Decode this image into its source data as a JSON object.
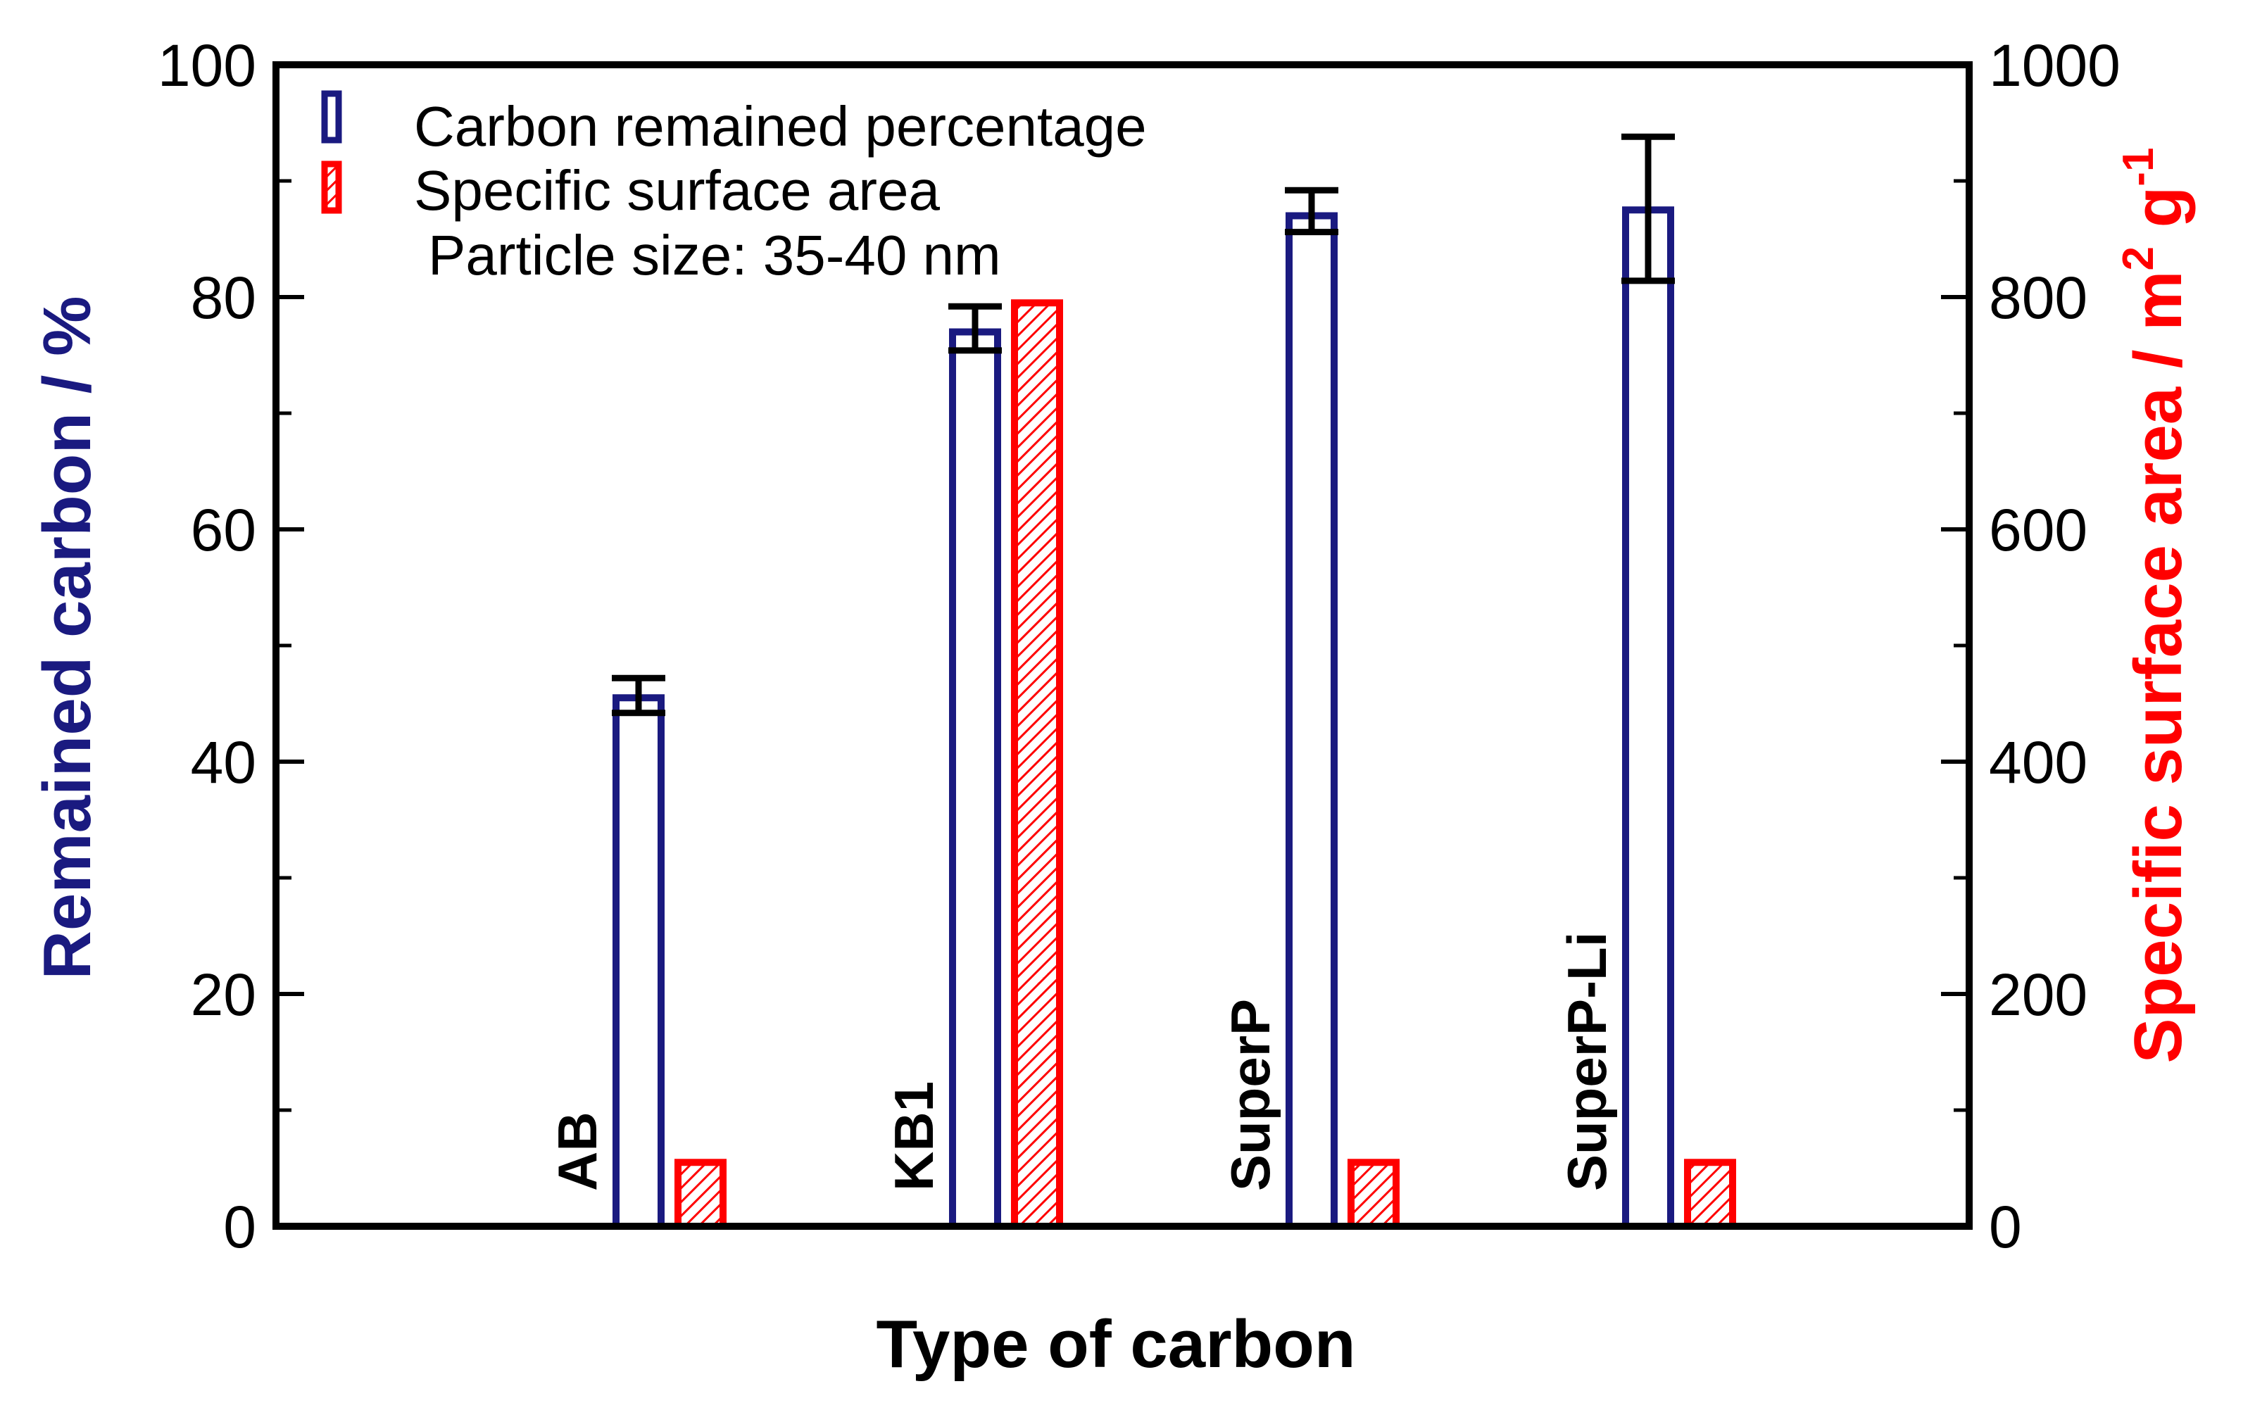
{
  "chart_data": {
    "type": "bar",
    "categories": [
      "AB",
      "KB1",
      "SuperP",
      "SuperP-Li"
    ],
    "series": [
      {
        "name": "Carbon remained percentage",
        "axis": "left",
        "color": "#1a1a80",
        "fill": "hollow",
        "values": [
          45.5,
          77,
          87,
          87.5
        ],
        "error_upper": [
          47.2,
          79.2,
          89.2,
          93.8
        ],
        "error_lower": [
          44.2,
          75.4,
          85.6,
          81.4
        ]
      },
      {
        "name": "Specific surface area",
        "axis": "right",
        "color": "#ff0000",
        "fill": "hatched",
        "values": [
          55,
          795,
          55,
          55
        ]
      }
    ],
    "annotation": "Particle size: 35-40 nm",
    "xlabel": "Type of carbon",
    "ylabel_left": "Remained carbon  / %",
    "ylabel_right": "Specific surface area / m",
    "ylabel_right_sup1": "2",
    "ylabel_right_mid": " g",
    "ylabel_right_sup2": "-1",
    "ylim_left": [
      0,
      100
    ],
    "ylim_right": [
      0,
      1000
    ],
    "yticks_left": [
      "0",
      "20",
      "40",
      "60",
      "80",
      "100"
    ],
    "yticks_right": [
      "0",
      "200",
      "400",
      "600",
      "800",
      "1000"
    ],
    "grid": false,
    "legend_position": "top-left",
    "left_axis_color": "#1a1a80",
    "right_axis_color": "#ff0000"
  }
}
